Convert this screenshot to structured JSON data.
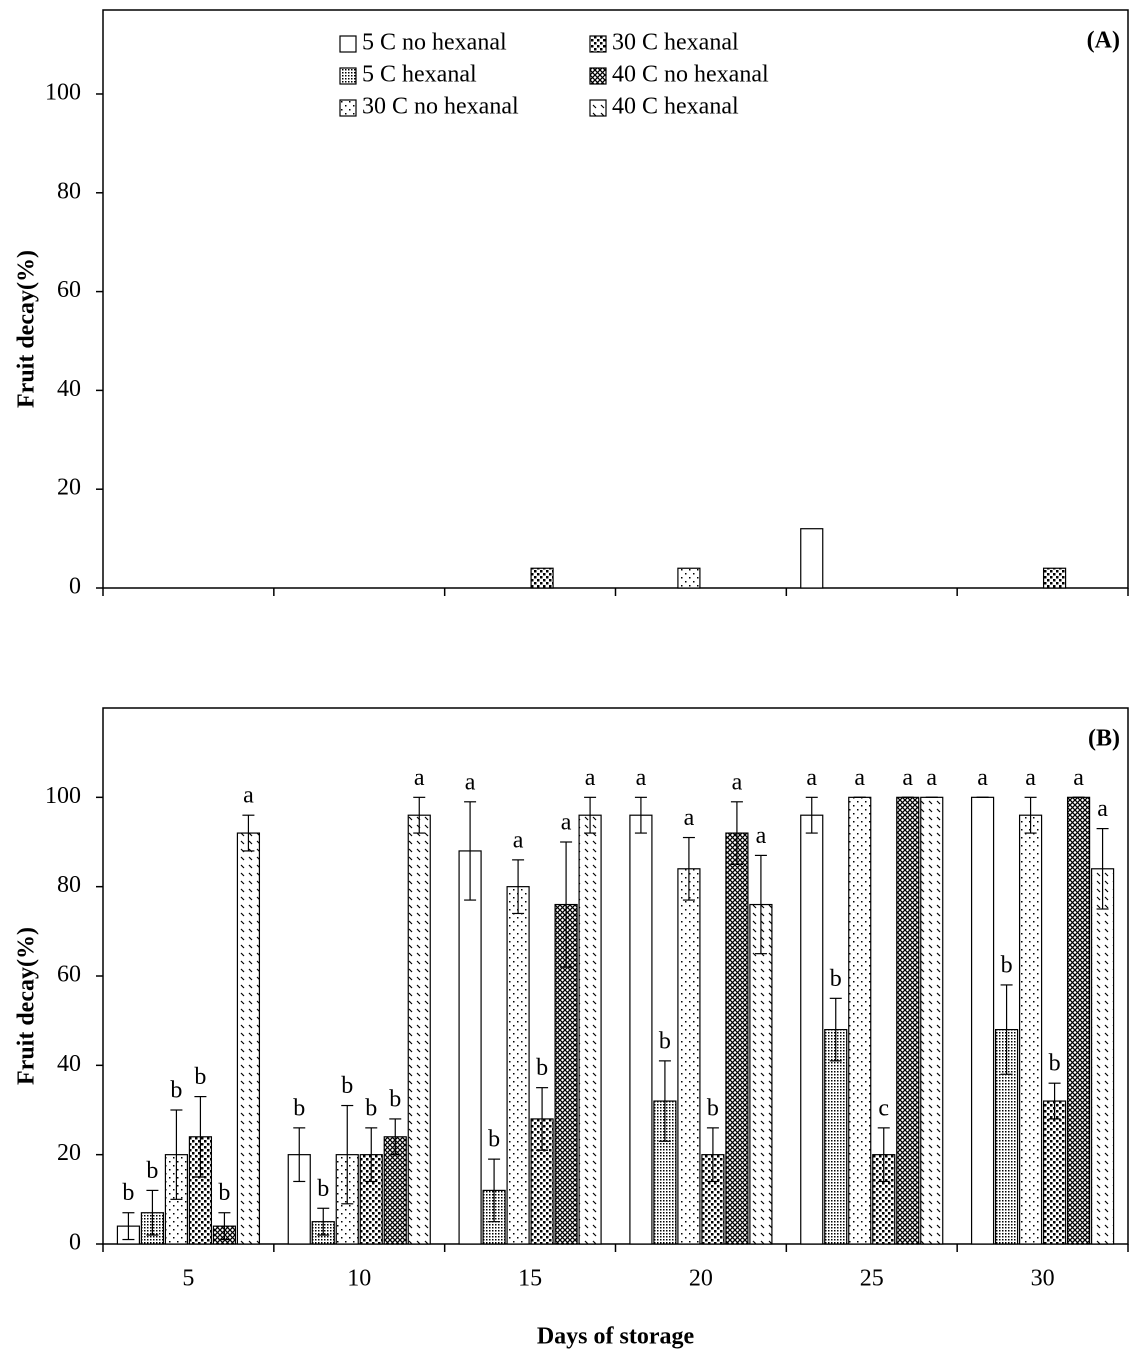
{
  "chart_data": [
    {
      "type": "bar",
      "panel_label": "(A)",
      "ylabel": "Fruit decay(%)",
      "ylim": [
        0,
        117
      ],
      "yticks": [
        0,
        20,
        40,
        60,
        80,
        100
      ],
      "series": [
        {
          "name": "5 C no hexanal",
          "values": [
            0,
            0,
            0,
            0,
            12,
            0
          ]
        },
        {
          "name": "5 C hexanal",
          "values": [
            0,
            0,
            0,
            0,
            0,
            0
          ]
        },
        {
          "name": "30 C no hexanal",
          "values": [
            0,
            0,
            0,
            4,
            0,
            0
          ]
        },
        {
          "name": "30 C hexanal",
          "values": [
            0,
            0,
            4,
            0,
            0,
            4
          ]
        },
        {
          "name": "40 C no hexanal",
          "values": [
            0,
            0,
            0,
            0,
            0,
            0
          ]
        },
        {
          "name": "40 C hexanal",
          "values": [
            0,
            0,
            0,
            0,
            0,
            0
          ]
        }
      ]
    },
    {
      "type": "bar",
      "panel_label": "(B)",
      "ylabel": "Fruit decay(%)",
      "xlabel": "Days of storage",
      "categories": [
        "5",
        "10",
        "15",
        "20",
        "25",
        "30"
      ],
      "ylim": [
        0,
        120
      ],
      "yticks": [
        0,
        20,
        40,
        60,
        80,
        100
      ],
      "series": [
        {
          "values": [
            4,
            20,
            88,
            96,
            96,
            100
          ],
          "errors": [
            3,
            6,
            11,
            4,
            4,
            0
          ],
          "labels": [
            "b",
            "b",
            "a",
            "a",
            "a",
            "a"
          ]
        },
        {
          "values": [
            7,
            5,
            12,
            32,
            48,
            48
          ],
          "errors": [
            5,
            3,
            7,
            9,
            7,
            10
          ],
          "labels": [
            "b",
            "b",
            "b",
            "b",
            "b",
            "b"
          ]
        },
        {
          "values": [
            20,
            20,
            80,
            84,
            100,
            96
          ],
          "errors": [
            10,
            11,
            6,
            7,
            0,
            4
          ],
          "labels": [
            "b",
            "b",
            "a",
            "a",
            "a",
            "a"
          ]
        },
        {
          "values": [
            24,
            20,
            28,
            20,
            20,
            32
          ],
          "errors": [
            9,
            6,
            7,
            6,
            6,
            4
          ],
          "labels": [
            "b",
            "b",
            "b",
            "b",
            "c",
            "b"
          ]
        },
        {
          "values": [
            4,
            24,
            76,
            92,
            100,
            100
          ],
          "errors": [
            3,
            4,
            14,
            7,
            0,
            0
          ],
          "labels": [
            "b",
            "b",
            "a",
            "a",
            "a",
            "a"
          ]
        },
        {
          "values": [
            92,
            96,
            96,
            76,
            100,
            84
          ],
          "errors": [
            4,
            4,
            4,
            11,
            0,
            9
          ],
          "labels": [
            "a",
            "a",
            "a",
            "a",
            "a",
            "a"
          ]
        }
      ]
    }
  ]
}
